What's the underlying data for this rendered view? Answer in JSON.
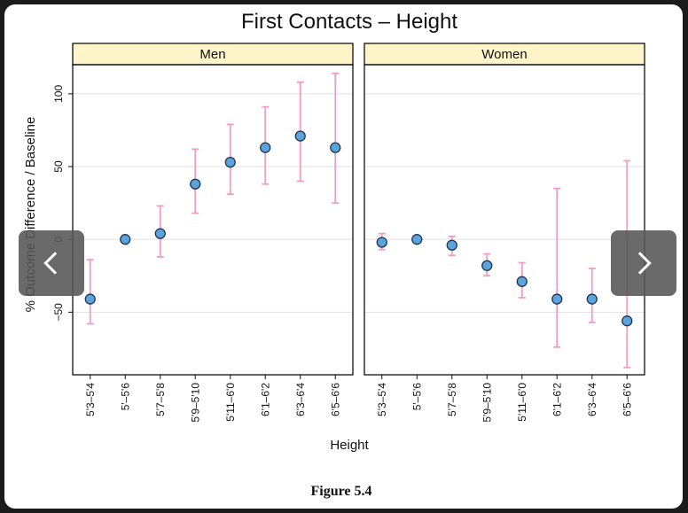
{
  "chart_data": {
    "type": "scatter",
    "title": "First Contacts – Height",
    "xlabel": "Height",
    "ylabel": "% Outcome Difference / Baseline",
    "ylim": [
      -93,
      120
    ],
    "yticks": [
      -50,
      0,
      50,
      100
    ],
    "ytick_labels": [
      "−50",
      "0",
      "50",
      "100"
    ],
    "grid": true,
    "categories": [
      "5'3–5'4",
      "5'–5'6",
      "5'7–5'8",
      "5'9–5'10",
      "5'11–6'0",
      "6'1–6'2",
      "6'3–6'4",
      "6'5–6'6"
    ],
    "panels": [
      {
        "name": "Men",
        "values": [
          -41,
          0,
          4,
          38,
          53,
          63,
          71,
          63
        ],
        "lower": [
          -58,
          0,
          -12,
          18,
          31,
          38,
          40,
          25
        ],
        "upper": [
          -14,
          0,
          23,
          62,
          79,
          91,
          108,
          114
        ]
      },
      {
        "name": "Women",
        "values": [
          -2,
          0,
          -4,
          -18,
          -29,
          -41,
          -41,
          -56
        ],
        "lower": [
          -7,
          0,
          -11,
          -25,
          -40,
          -74,
          -57,
          -88
        ],
        "upper": [
          4,
          0,
          2,
          -10,
          -16,
          35,
          -20,
          54
        ]
      }
    ],
    "marker_color": "#5ba3dc",
    "errorbar_color": "#f09cc4",
    "strip_color": "#fff5c9"
  },
  "caption": "Figure 5.4",
  "nav": {
    "prev_icon": "chevron-left-icon",
    "next_icon": "chevron-right-icon"
  }
}
